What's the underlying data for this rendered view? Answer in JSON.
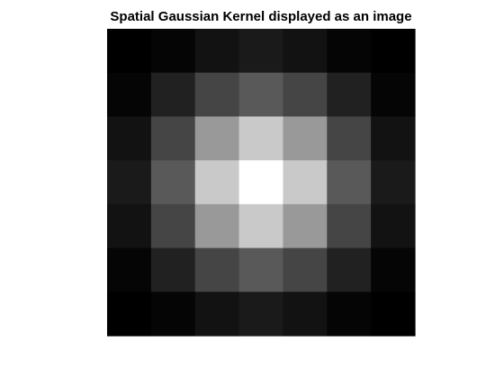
{
  "chart_data": {
    "type": "heatmap",
    "title": "Spatial Gaussian Kernel displayed as an image",
    "xlabel": "",
    "ylabel": "",
    "colormap": "gray",
    "axes_visible": false,
    "grid": false,
    "legend": "none",
    "rows": 7,
    "cols": 7,
    "intensity_range": [
      0,
      1
    ],
    "values": [
      [
        0.0,
        0.02,
        0.07,
        0.1,
        0.07,
        0.02,
        0.0
      ],
      [
        0.02,
        0.13,
        0.27,
        0.35,
        0.27,
        0.13,
        0.02
      ],
      [
        0.07,
        0.27,
        0.6,
        0.79,
        0.6,
        0.27,
        0.07
      ],
      [
        0.1,
        0.35,
        0.79,
        1.0,
        0.79,
        0.35,
        0.1
      ],
      [
        0.07,
        0.27,
        0.6,
        0.79,
        0.6,
        0.27,
        0.07
      ],
      [
        0.02,
        0.13,
        0.27,
        0.35,
        0.27,
        0.13,
        0.02
      ],
      [
        0.0,
        0.02,
        0.07,
        0.1,
        0.07,
        0.02,
        0.0
      ]
    ]
  }
}
